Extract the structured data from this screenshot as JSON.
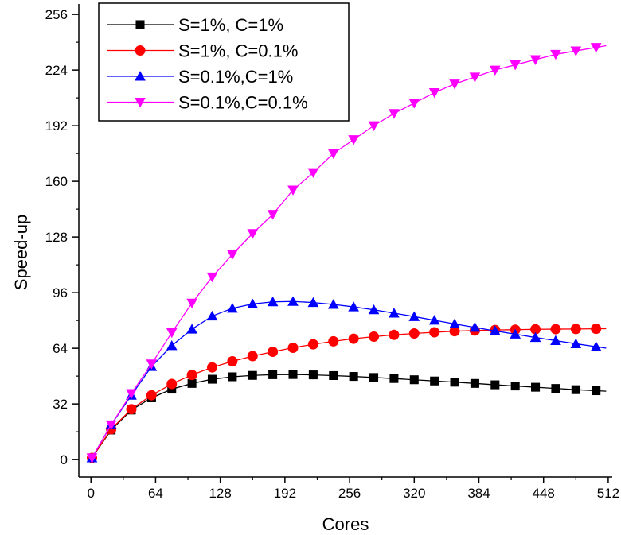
{
  "chart_data": {
    "type": "line",
    "xlabel": "Cores",
    "ylabel": "Speed-up",
    "xlim": [
      -12,
      516
    ],
    "ylim": [
      -10,
      262
    ],
    "xticks": [
      0,
      64,
      128,
      192,
      256,
      320,
      384,
      448,
      512
    ],
    "yticks": [
      0,
      32,
      64,
      96,
      128,
      160,
      192,
      224,
      256
    ],
    "grid": false,
    "legend_position": "top-left",
    "x": [
      1,
      20,
      40,
      60,
      80,
      100,
      120,
      140,
      160,
      180,
      200,
      220,
      240,
      260,
      280,
      300,
      320,
      340,
      360,
      380,
      400,
      420,
      440,
      460,
      480,
      500
    ],
    "series": [
      {
        "name": "S=1%, C=1%",
        "color": "#000000",
        "marker": "square",
        "values": [
          1,
          17,
          28.5,
          35.5,
          40.5,
          43.8,
          46.2,
          47.6,
          48.4,
          48.8,
          48.9,
          48.7,
          48.3,
          47.8,
          47.2,
          46.6,
          45.9,
          45.2,
          44.5,
          43.8,
          43.0,
          42.3,
          41.6,
          40.9,
          40.2,
          39.6
        ]
      },
      {
        "name": "S=1%, C=0.1%",
        "color": "#ff0000",
        "marker": "circle",
        "values": [
          1,
          17.5,
          29,
          37,
          43.5,
          48.7,
          53,
          56.5,
          59.5,
          62,
          64.3,
          66.3,
          68,
          69.5,
          70.7,
          71.7,
          72.5,
          73.2,
          73.8,
          74.2,
          74.5,
          74.7,
          74.9,
          75.0,
          75.1,
          75.2
        ]
      },
      {
        "name": "S=0.1%,C=1%",
        "color": "#0000ff",
        "marker": "triangle-up",
        "values": [
          1,
          20,
          37,
          53.5,
          65.5,
          75,
          82.5,
          87,
          89.5,
          90.7,
          90.9,
          90.3,
          89.2,
          87.8,
          86.1,
          84.2,
          82.2,
          80.1,
          78,
          76,
          74,
          72.1,
          70.2,
          68.4,
          66.6,
          64.9
        ]
      },
      {
        "name": "S=0.1%,C=0.1%",
        "color": "#ff00ff",
        "marker": "triangle-down",
        "values": [
          1,
          20,
          38,
          55,
          73,
          90,
          105,
          118,
          130,
          141,
          155,
          165,
          176,
          184,
          192,
          199,
          205,
          211,
          216,
          220,
          224,
          227,
          230,
          233,
          235,
          237
        ]
      }
    ]
  }
}
